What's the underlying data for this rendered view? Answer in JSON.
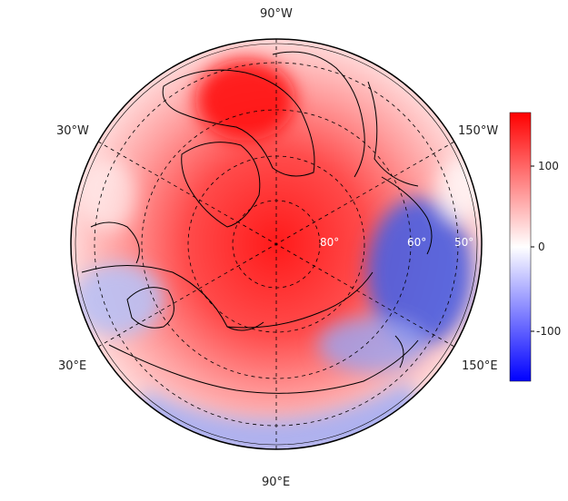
{
  "map": {
    "projection": "north-polar-stereographic",
    "longitude_labels": {
      "top": "90°W",
      "left_upper": "30°W",
      "right_upper": "150°W",
      "left_lower": "30°E",
      "right_lower": "150°E",
      "bottom": "90°E"
    },
    "latitude_labels": [
      "80°",
      "60°",
      "50°"
    ],
    "grid": true,
    "coastlines": true
  },
  "colorbar": {
    "ticks": [
      "100",
      "0",
      "-100"
    ],
    "range": [
      -160,
      160
    ],
    "colors": {
      "max": "#ff0000",
      "mid": "#ffffff",
      "min": "#0000ff"
    }
  }
}
